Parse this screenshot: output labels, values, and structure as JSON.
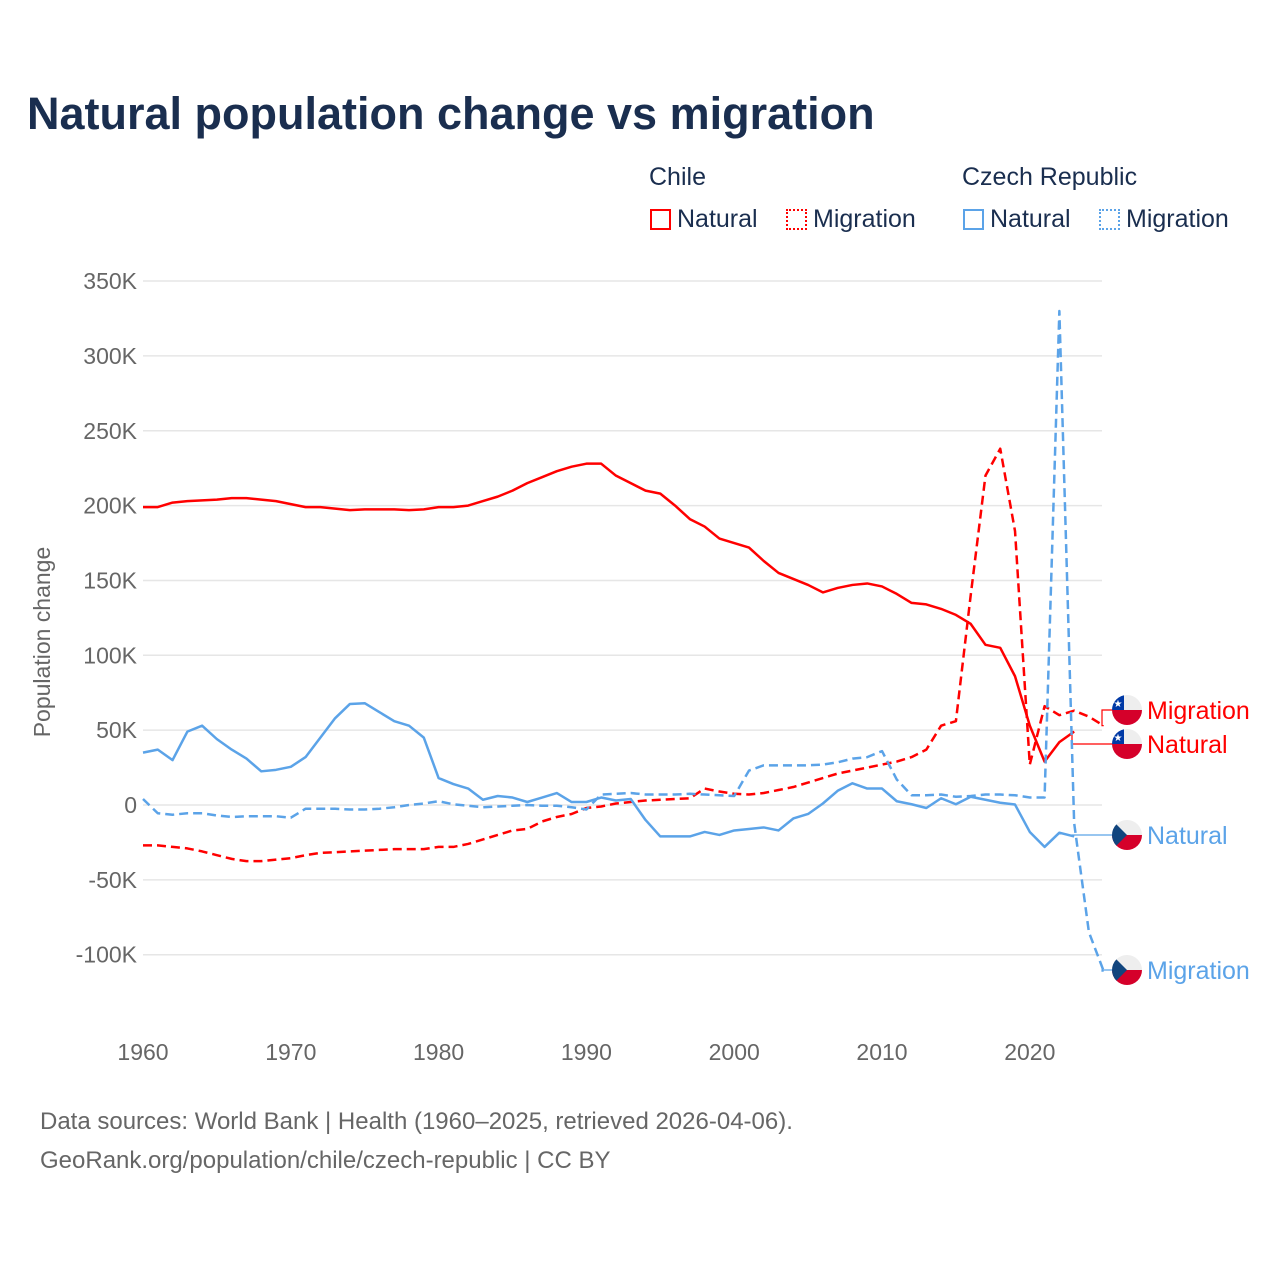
{
  "chart_data": {
    "type": "line",
    "title": "Natural population change vs migration",
    "xlabel": "",
    "ylabel": "Population change",
    "xlim": [
      1960,
      2025
    ],
    "ylim": [
      -125000,
      350000
    ],
    "x_ticks": [
      "1960",
      "1970",
      "1980",
      "1990",
      "2000",
      "2010",
      "2020"
    ],
    "y_ticks": [
      "350K",
      "300K",
      "250K",
      "200K",
      "150K",
      "100K",
      "50K",
      "0",
      "-50K",
      "-100K"
    ],
    "legend": {
      "groups": [
        {
          "name": "Chile",
          "items": [
            "Natural",
            "Migration"
          ]
        },
        {
          "name": "Czech Republic",
          "items": [
            "Natural",
            "Migration"
          ]
        }
      ],
      "placement": "top-right"
    },
    "start_year": 1960,
    "series": [
      {
        "name": "Chile Natural",
        "label": "Natural",
        "country": "Chile",
        "color": "#ff0000",
        "dashed": false,
        "values": [
          199,
          199,
          202,
          203,
          203.5,
          204,
          205,
          205,
          204,
          203,
          201,
          199,
          199,
          198,
          197,
          197.5,
          197.5,
          197.5,
          197,
          197.5,
          199,
          199,
          200,
          203,
          206,
          210,
          215,
          219,
          223,
          226,
          228,
          228,
          220,
          215,
          210,
          208,
          200,
          191,
          186,
          178,
          175,
          172,
          163,
          155,
          151,
          147,
          142,
          145,
          147,
          148,
          146,
          141,
          135,
          134,
          131,
          127,
          121,
          107,
          105,
          86,
          53,
          29,
          42,
          49
        ]
      },
      {
        "name": "Chile Migration",
        "label": "Migration",
        "country": "Chile",
        "color": "#ff0000",
        "dashed": true,
        "values": [
          -27,
          -27,
          -28,
          -29,
          -31,
          -33.5,
          -36,
          -37.5,
          -37.5,
          -36.5,
          -35.5,
          -33.5,
          -32,
          -31.5,
          -31,
          -30.5,
          -30,
          -29.5,
          -29.5,
          -29.5,
          -28,
          -28,
          -26,
          -23,
          -20,
          -17,
          -16,
          -11,
          -8,
          -6,
          -2,
          -1,
          1,
          2,
          3,
          3.5,
          4,
          4.5,
          11,
          9,
          7.5,
          7,
          8,
          10,
          12,
          15,
          18,
          21,
          23,
          25,
          27,
          29,
          32,
          37,
          53,
          56,
          140,
          220,
          238,
          183,
          27,
          66,
          60,
          63,
          59,
          53
        ]
      },
      {
        "name": "Czech Republic Natural",
        "label": "Natural",
        "country": "Czech Republic",
        "color": "#5ba3e8",
        "dashed": false,
        "values": [
          35,
          37,
          30,
          49,
          53,
          44,
          37,
          31,
          22.5,
          23.5,
          25.5,
          32,
          45,
          58,
          67.5,
          68,
          62,
          56,
          53,
          45,
          18,
          14,
          11,
          3.5,
          6,
          5,
          2,
          5,
          8,
          2,
          2,
          5,
          3,
          4,
          -10,
          -21,
          -21,
          -21,
          -18,
          -20,
          -17,
          -16,
          -15,
          -17,
          -9,
          -6,
          1,
          9.5,
          14.5,
          11,
          11,
          2.5,
          0.5,
          -2,
          4.5,
          0.5,
          5.5,
          3.5,
          1.5,
          0.3,
          -18,
          -28,
          -18.5,
          -21
        ]
      },
      {
        "name": "Czech Republic Migration",
        "label": "Migration",
        "country": "Czech Republic",
        "color": "#5ba3e8",
        "dashed": true,
        "values": [
          4,
          -5.5,
          -6.5,
          -5.5,
          -5.5,
          -7,
          -8,
          -7.5,
          -7.5,
          -7.5,
          -8.5,
          -2.5,
          -2.5,
          -2.5,
          -3,
          -3,
          -2.5,
          -1.5,
          0,
          1,
          2.5,
          0.5,
          -0.5,
          -1.5,
          -1,
          -0.5,
          0,
          -0.5,
          -0.5,
          -1.5,
          -3,
          7,
          7.5,
          8,
          7,
          7,
          7,
          7.5,
          7,
          6.5,
          6,
          23,
          26.5,
          26.5,
          26.5,
          26.5,
          27,
          28.5,
          31,
          32,
          36,
          17,
          6.5,
          6.5,
          7,
          5.5,
          6,
          7,
          7,
          6.5,
          5,
          5,
          330,
          -12,
          -85,
          -111
        ]
      }
    ],
    "value_unit": "thousands"
  },
  "source": {
    "line1": "Data sources: World Bank | Health (1960–2025, retrieved 2026-04-06).",
    "line2": "GeoRank.org/population/chile/czech-republic | CC BY"
  }
}
